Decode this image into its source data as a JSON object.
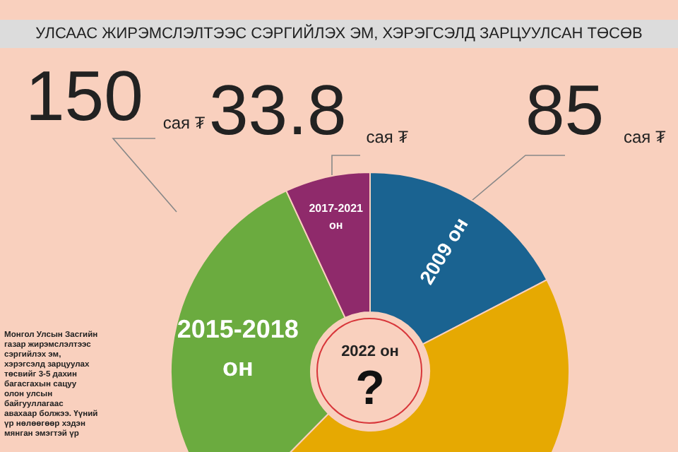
{
  "chart_data": {
    "type": "donut",
    "title": "УЛСААС ЖИРЭМСЛЭЛТЭЭС СЭРГИЙЛЭХ ЭМ, ХЭРЭГСЭЛД ЗАРЦУУЛСАН ТӨСӨВ",
    "categories": [
      "2009 он",
      null,
      "2015-2018 он",
      "2017-2021 он"
    ],
    "values": [
      85,
      220,
      150,
      33.8
    ],
    "colors": [
      "#1a6391",
      "#e6a902",
      "#6bab3f",
      "#8f2a6b"
    ],
    "value_labels": [
      "85 сая ₮",
      null,
      "150 сая ₮",
      "33.8 сая ₮"
    ],
    "annotations": [
      "2022 он",
      "?",
      "Монгол Улсын Засгийн газар жирэмслэлтээс сэргийлэх эм, хэрэгсэлд зарцуулах төсвийг 3-5 дахин багасгахын сацуу олон улсын байгууллагаас авахаар болжээ. Үүний үр нөлөөгөөр хэдэн мянган эмэгтэй үр"
    ],
    "legend": false
  }
}
